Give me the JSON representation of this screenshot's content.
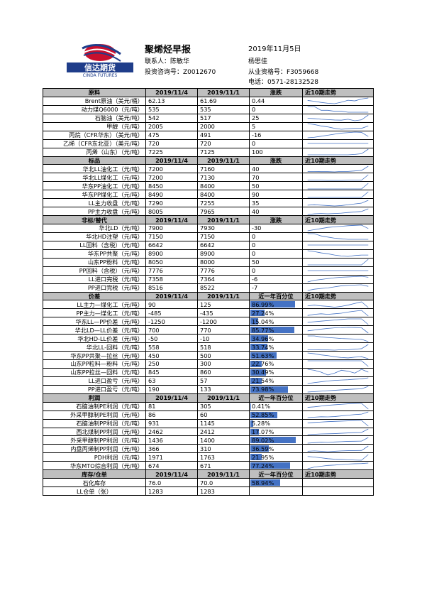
{
  "header": {
    "company_cn": "信达期货",
    "company_en": "CINDA FUTURES",
    "title": "聚烯烃早报",
    "date": "2019年11月5日",
    "contact": "联系人：陈敏华",
    "consult_no": "投资咨询号：Z0012670",
    "person": "杨思佳",
    "license_no": "从业资格号：F3059668",
    "phone": "电话：0571-28132528",
    "brand_colors": {
      "red": "#c8102e",
      "blue": "#1f3d8a"
    }
  },
  "sections": [
    {
      "header": [
        "原料",
        "2019/11/4",
        "2019/11/1",
        "涨跌",
        "近10期走势"
      ],
      "mode": "trend",
      "rows": [
        {
          "name": "Brent原油（美元/桶）",
          "align": "right",
          "v1": "62.13",
          "v2": "61.69",
          "chg": "0.44",
          "trend": [
            61.0,
            60.6,
            60.1,
            59.7,
            59.5,
            60.2,
            61.1,
            60.8,
            61.69,
            62.13
          ]
        },
        {
          "name": "动力煤Q6000（元/吨）",
          "align": "right",
          "v1": "535",
          "v2": "535",
          "chg": "0",
          "trend": [
            565,
            565,
            545,
            545,
            540,
            540,
            535,
            535,
            535,
            535
          ]
        },
        {
          "name": "石脑油（美元/吨）",
          "align": "right",
          "v1": "542",
          "v2": "517",
          "chg": "25",
          "trend": [
            525,
            523,
            520,
            518,
            516,
            515,
            520,
            512,
            517,
            542
          ]
        },
        {
          "name": "甲醇（元/吨）",
          "align": "right",
          "v1": "2005",
          "v2": "2000",
          "chg": "5",
          "trend": [
            2010,
            2008,
            2005,
            2003,
            2000,
            1998,
            1999,
            2000,
            2000,
            2005
          ]
        },
        {
          "name": "丙烷（CFR华东）（美元/吨）",
          "align": "right",
          "v1": "475",
          "v2": "491",
          "chg": "-16",
          "trend": [
            470,
            472,
            476,
            480,
            484,
            488,
            490,
            492,
            491,
            475
          ]
        },
        {
          "name": "乙烯（CFR东北亚）（美元/吨）",
          "align": "right",
          "v1": "720",
          "v2": "720",
          "chg": "0",
          "trend": [
            720,
            720,
            720,
            720,
            720,
            720,
            720,
            720,
            720,
            720
          ]
        },
        {
          "name": "丙烯（山东）（元/吨）",
          "align": "right",
          "v1": "7225",
          "v2": "7125",
          "chg": "100",
          "trend": [
            7100,
            7100,
            7100,
            7100,
            7100,
            7100,
            7100,
            7110,
            7125,
            7225
          ]
        }
      ]
    },
    {
      "header": [
        "标品",
        "2019/11/4",
        "2019/11/1",
        "涨跌",
        "近10期走势"
      ],
      "mode": "trend",
      "rows": [
        {
          "name": "华北LL油化工（元/吨）",
          "align": "right",
          "v1": "7200",
          "v2": "7160",
          "chg": "40",
          "trend": [
            7150,
            7150,
            7148,
            7148,
            7146,
            7150,
            7150,
            7155,
            7160,
            7200
          ]
        },
        {
          "name": "华北LL煤化工（元/吨）",
          "align": "right",
          "v1": "7200",
          "v2": "7130",
          "chg": "70",
          "trend": [
            7130,
            7130,
            7130,
            7128,
            7128,
            7128,
            7130,
            7130,
            7130,
            7200
          ]
        },
        {
          "name": "华东PP油化工（元/吨）",
          "align": "right",
          "v1": "8450",
          "v2": "8400",
          "chg": "50",
          "trend": [
            8400,
            8400,
            8400,
            8400,
            8400,
            8400,
            8400,
            8400,
            8400,
            8450
          ]
        },
        {
          "name": "华东PP煤化工（元/吨）",
          "align": "right",
          "v1": "8490",
          "v2": "8400",
          "chg": "90",
          "trend": [
            8400,
            8400,
            8400,
            8400,
            8400,
            8400,
            8400,
            8400,
            8400,
            8490
          ]
        },
        {
          "name": "LL主力收盘（元/吨）",
          "align": "right",
          "v1": "7290",
          "v2": "7255",
          "chg": "35",
          "trend": [
            7230,
            7235,
            7230,
            7225,
            7220,
            7225,
            7235,
            7245,
            7255,
            7290
          ]
        },
        {
          "name": "PP主力收盘（元/吨）",
          "align": "right",
          "v1": "8005",
          "v2": "7965",
          "chg": "40",
          "trend": [
            7920,
            7930,
            7935,
            7930,
            7935,
            7940,
            7950,
            7958,
            7965,
            8005
          ]
        }
      ]
    },
    {
      "header": [
        "非标/替代",
        "2019/11/4",
        "2019/11/1",
        "涨跌",
        "近10期走势"
      ],
      "mode": "trend",
      "rows": [
        {
          "name": "华北LD（元/吨）",
          "align": "right",
          "v1": "7900",
          "v2": "7930",
          "chg": "-30",
          "trend": [
            7880,
            7890,
            7900,
            7910,
            7915,
            7920,
            7925,
            7928,
            7930,
            7900
          ]
        },
        {
          "name": "华北HD注塑（元/吨）",
          "align": "right",
          "v1": "7150",
          "v2": "7150",
          "chg": "0",
          "trend": [
            7200,
            7200,
            7180,
            7170,
            7160,
            7155,
            7150,
            7150,
            7150,
            7150
          ]
        },
        {
          "name": "LL回料（含税）（元/吨）",
          "align": "right",
          "v1": "6642",
          "v2": "6642",
          "chg": "0",
          "trend": [
            6642,
            6642,
            6642,
            6642,
            6642,
            6642,
            6642,
            6642,
            6642,
            6642
          ]
        },
        {
          "name": "华东PP共聚（元/吨）",
          "align": "right",
          "v1": "8900",
          "v2": "8900",
          "chg": "0",
          "trend": [
            9000,
            8980,
            8950,
            8930,
            8900,
            8880,
            8870,
            8890,
            8900,
            8900
          ]
        },
        {
          "name": "山东PP粉料（元/吨）",
          "align": "right",
          "v1": "8050",
          "v2": "8000",
          "chg": "50",
          "trend": [
            8000,
            8000,
            8000,
            8000,
            8000,
            8000,
            8000,
            8000,
            8000,
            8050
          ]
        },
        {
          "name": "PP回料（含税）（元/吨）",
          "align": "right",
          "v1": "7776",
          "v2": "7776",
          "chg": "0",
          "trend": [
            7776,
            7776,
            7776,
            7776,
            7776,
            7776,
            7776,
            7776,
            7776,
            7776
          ]
        },
        {
          "name": "LL进口完税（元/吨）",
          "align": "right",
          "v1": "7358",
          "v2": "7364",
          "chg": "-6",
          "trend": [
            7330,
            7340,
            7345,
            7350,
            7355,
            7358,
            7360,
            7362,
            7364,
            7358
          ]
        },
        {
          "name": "PP进口完税（元/吨）",
          "align": "right",
          "v1": "8516",
          "v2": "8522",
          "chg": "-7",
          "trend": [
            8500,
            8505,
            8508,
            8510,
            8514,
            8518,
            8520,
            8521,
            8522,
            8516
          ]
        }
      ]
    },
    {
      "header": [
        "价差",
        "2019/11/4",
        "2019/11/1",
        "近一年百分位",
        "近10期走势"
      ],
      "mode": "pct",
      "rows": [
        {
          "name": "LL主力—煤化工（元/吨）",
          "align": "right",
          "v1": "90",
          "v2": "125",
          "pct_text": "86.99%",
          "pct": 0.8699,
          "trend": [
            100,
            105,
            100,
            97,
            92,
            97,
            105,
            115,
            125,
            90
          ]
        },
        {
          "name": "PP主力—煤化工（元/吨）",
          "align": "right",
          "v1": "-485",
          "v2": "-435",
          "pct_text": "27.24%",
          "pct": 0.2724,
          "trend": [
            -480,
            -470,
            -465,
            -470,
            -465,
            -460,
            -450,
            -442,
            -435,
            -485
          ]
        },
        {
          "name": "华东LL—PP价差（元/吨）",
          "align": "right",
          "v1": "-1250",
          "v2": "-1200",
          "pct_text": "15.04%",
          "pct": 0.1504,
          "trend": [
            -1230,
            -1225,
            -1220,
            -1215,
            -1210,
            -1205,
            -1200,
            -1200,
            -1200,
            -1250
          ]
        },
        {
          "name": "华北LD—LL价差（元/吨）",
          "align": "right",
          "v1": "700",
          "v2": "770",
          "pct_text": "85.77%",
          "pct": 0.8577,
          "trend": [
            730,
            740,
            752,
            762,
            769,
            770,
            775,
            773,
            770,
            700
          ]
        },
        {
          "name": "华北HD-LL价差（元/吨）",
          "align": "right",
          "v1": "-50",
          "v2": "-10",
          "pct_text": "34.96%",
          "pct": 0.3496,
          "trend": [
            50,
            50,
            32,
            22,
            14,
            5,
            0,
            -5,
            -10,
            -50
          ]
        },
        {
          "name": "华北LL-回料（元/吨）",
          "align": "right",
          "v1": "558",
          "v2": "518",
          "pct_text": "33.74%",
          "pct": 0.3374,
          "trend": [
            508,
            508,
            506,
            506,
            504,
            508,
            508,
            513,
            518,
            558
          ]
        },
        {
          "name": "华东PP共聚—拉丝（元/吨）",
          "align": "right",
          "v1": "450",
          "v2": "500",
          "pct_text": "51.63%",
          "pct": 0.5163,
          "trend": [
            600,
            580,
            550,
            530,
            500,
            480,
            470,
            490,
            500,
            450
          ]
        },
        {
          "name": "山东PP粒料—粉料（元/吨）",
          "align": "right",
          "v1": "250",
          "v2": "300",
          "pct_text": "22.76%",
          "pct": 0.2276,
          "trend": [
            300,
            300,
            300,
            300,
            300,
            300,
            300,
            300,
            300,
            250
          ]
        },
        {
          "name": "山东PP拉丝—回料（元/吨）",
          "align": "right",
          "v1": "845",
          "v2": "860",
          "pct_text": "30.49%",
          "pct": 0.3049,
          "trend": [
            860,
            855,
            845,
            830,
            840,
            855,
            850,
            840,
            860,
            845
          ]
        },
        {
          "name": "LL进口盈亏（元/吨）",
          "align": "right",
          "v1": "63",
          "v2": "57",
          "pct_text": "21.54%",
          "pct": 0.2154,
          "trend": [
            30,
            35,
            40,
            45,
            48,
            50,
            52,
            55,
            57,
            63
          ]
        },
        {
          "name": "PP进口盈亏（元/吨）",
          "align": "right",
          "v1": "190",
          "v2": "133",
          "pct_text": "73.98%",
          "pct": 0.7398,
          "trend": [
            60,
            70,
            80,
            90,
            100,
            110,
            120,
            128,
            133,
            190
          ]
        }
      ]
    },
    {
      "header": [
        "利润",
        "2019/11/4",
        "2019/11/1",
        "近一年百分位",
        "近10期走势"
      ],
      "mode": "pct",
      "rows": [
        {
          "name": "石脑油制PE利润（元/吨）",
          "align": "right",
          "v1": "81",
          "v2": "305",
          "pct_text": "0.41%",
          "pct": 0.0041,
          "trend": [
            150,
            170,
            200,
            230,
            250,
            270,
            290,
            300,
            305,
            81
          ]
        },
        {
          "name": "外采甲醇制PE利润（元/吨）",
          "align": "right",
          "v1": "86",
          "v2": "60",
          "pct_text": "52.85%",
          "pct": 0.5285,
          "trend": [
            20,
            25,
            30,
            28,
            32,
            40,
            48,
            55,
            60,
            86
          ]
        },
        {
          "name": "石脑油制PP利润（元/吨）",
          "align": "right",
          "v1": "931",
          "v2": "1145",
          "pct_text": "5.28%",
          "pct": 0.0528,
          "trend": [
            1050,
            1070,
            1085,
            1100,
            1110,
            1120,
            1130,
            1140,
            1145,
            931
          ]
        },
        {
          "name": "西北煤制PP利润（元/吨）",
          "align": "right",
          "v1": "2462",
          "v2": "2412",
          "pct_text": "17.07%",
          "pct": 0.1707,
          "trend": [
            2380,
            2385,
            2390,
            2392,
            2395,
            2400,
            2405,
            2410,
            2412,
            2462
          ]
        },
        {
          "name": "外采甲醇制PP利润（元/吨）",
          "align": "right",
          "v1": "1436",
          "v2": "1400",
          "pct_text": "89.02%",
          "pct": 0.8902,
          "trend": [
            1380,
            1385,
            1390,
            1388,
            1392,
            1395,
            1398,
            1399,
            1400,
            1436
          ]
        },
        {
          "name": "内盘丙烯制PP利润（元/吨）",
          "align": "right",
          "v1": "366",
          "v2": "310",
          "pct_text": "36.59%",
          "pct": 0.3659,
          "trend": [
            300,
            305,
            300,
            295,
            300,
            305,
            308,
            309,
            310,
            366
          ]
        },
        {
          "name": "PDH利润（元/吨）",
          "align": "right",
          "v1": "1971",
          "v2": "1763",
          "pct_text": "21.95%",
          "pct": 0.2195,
          "trend": [
            1900,
            1880,
            1850,
            1820,
            1800,
            1790,
            1780,
            1770,
            1763,
            1971
          ]
        },
        {
          "name": "华东MTO综合利润（元/吨）",
          "align": "right",
          "v1": "674",
          "v2": "671",
          "pct_text": "77.24%",
          "pct": 0.7724,
          "trend": [
            640,
            650,
            655,
            660,
            662,
            665,
            668,
            670,
            671,
            674
          ]
        }
      ]
    },
    {
      "header": [
        "库存/仓单",
        "2019/11/4",
        "2019/11/1",
        "近一年百分位",
        "近10期走势"
      ],
      "mode": "pct",
      "rows": [
        {
          "name": "石化库存",
          "align": "center",
          "v1": "76.0",
          "v2": "70.0",
          "pct_text": "58.94%",
          "pct": 0.5894,
          "trend": []
        },
        {
          "name": "LL仓单（张）",
          "align": "center",
          "v1": "1283",
          "v2": "1283",
          "pct_text": "",
          "pct": null,
          "trend": []
        }
      ]
    }
  ],
  "colors": {
    "header_bg": "#bfbfbf",
    "bar": "#4472c4",
    "spark": "#4472c4"
  }
}
